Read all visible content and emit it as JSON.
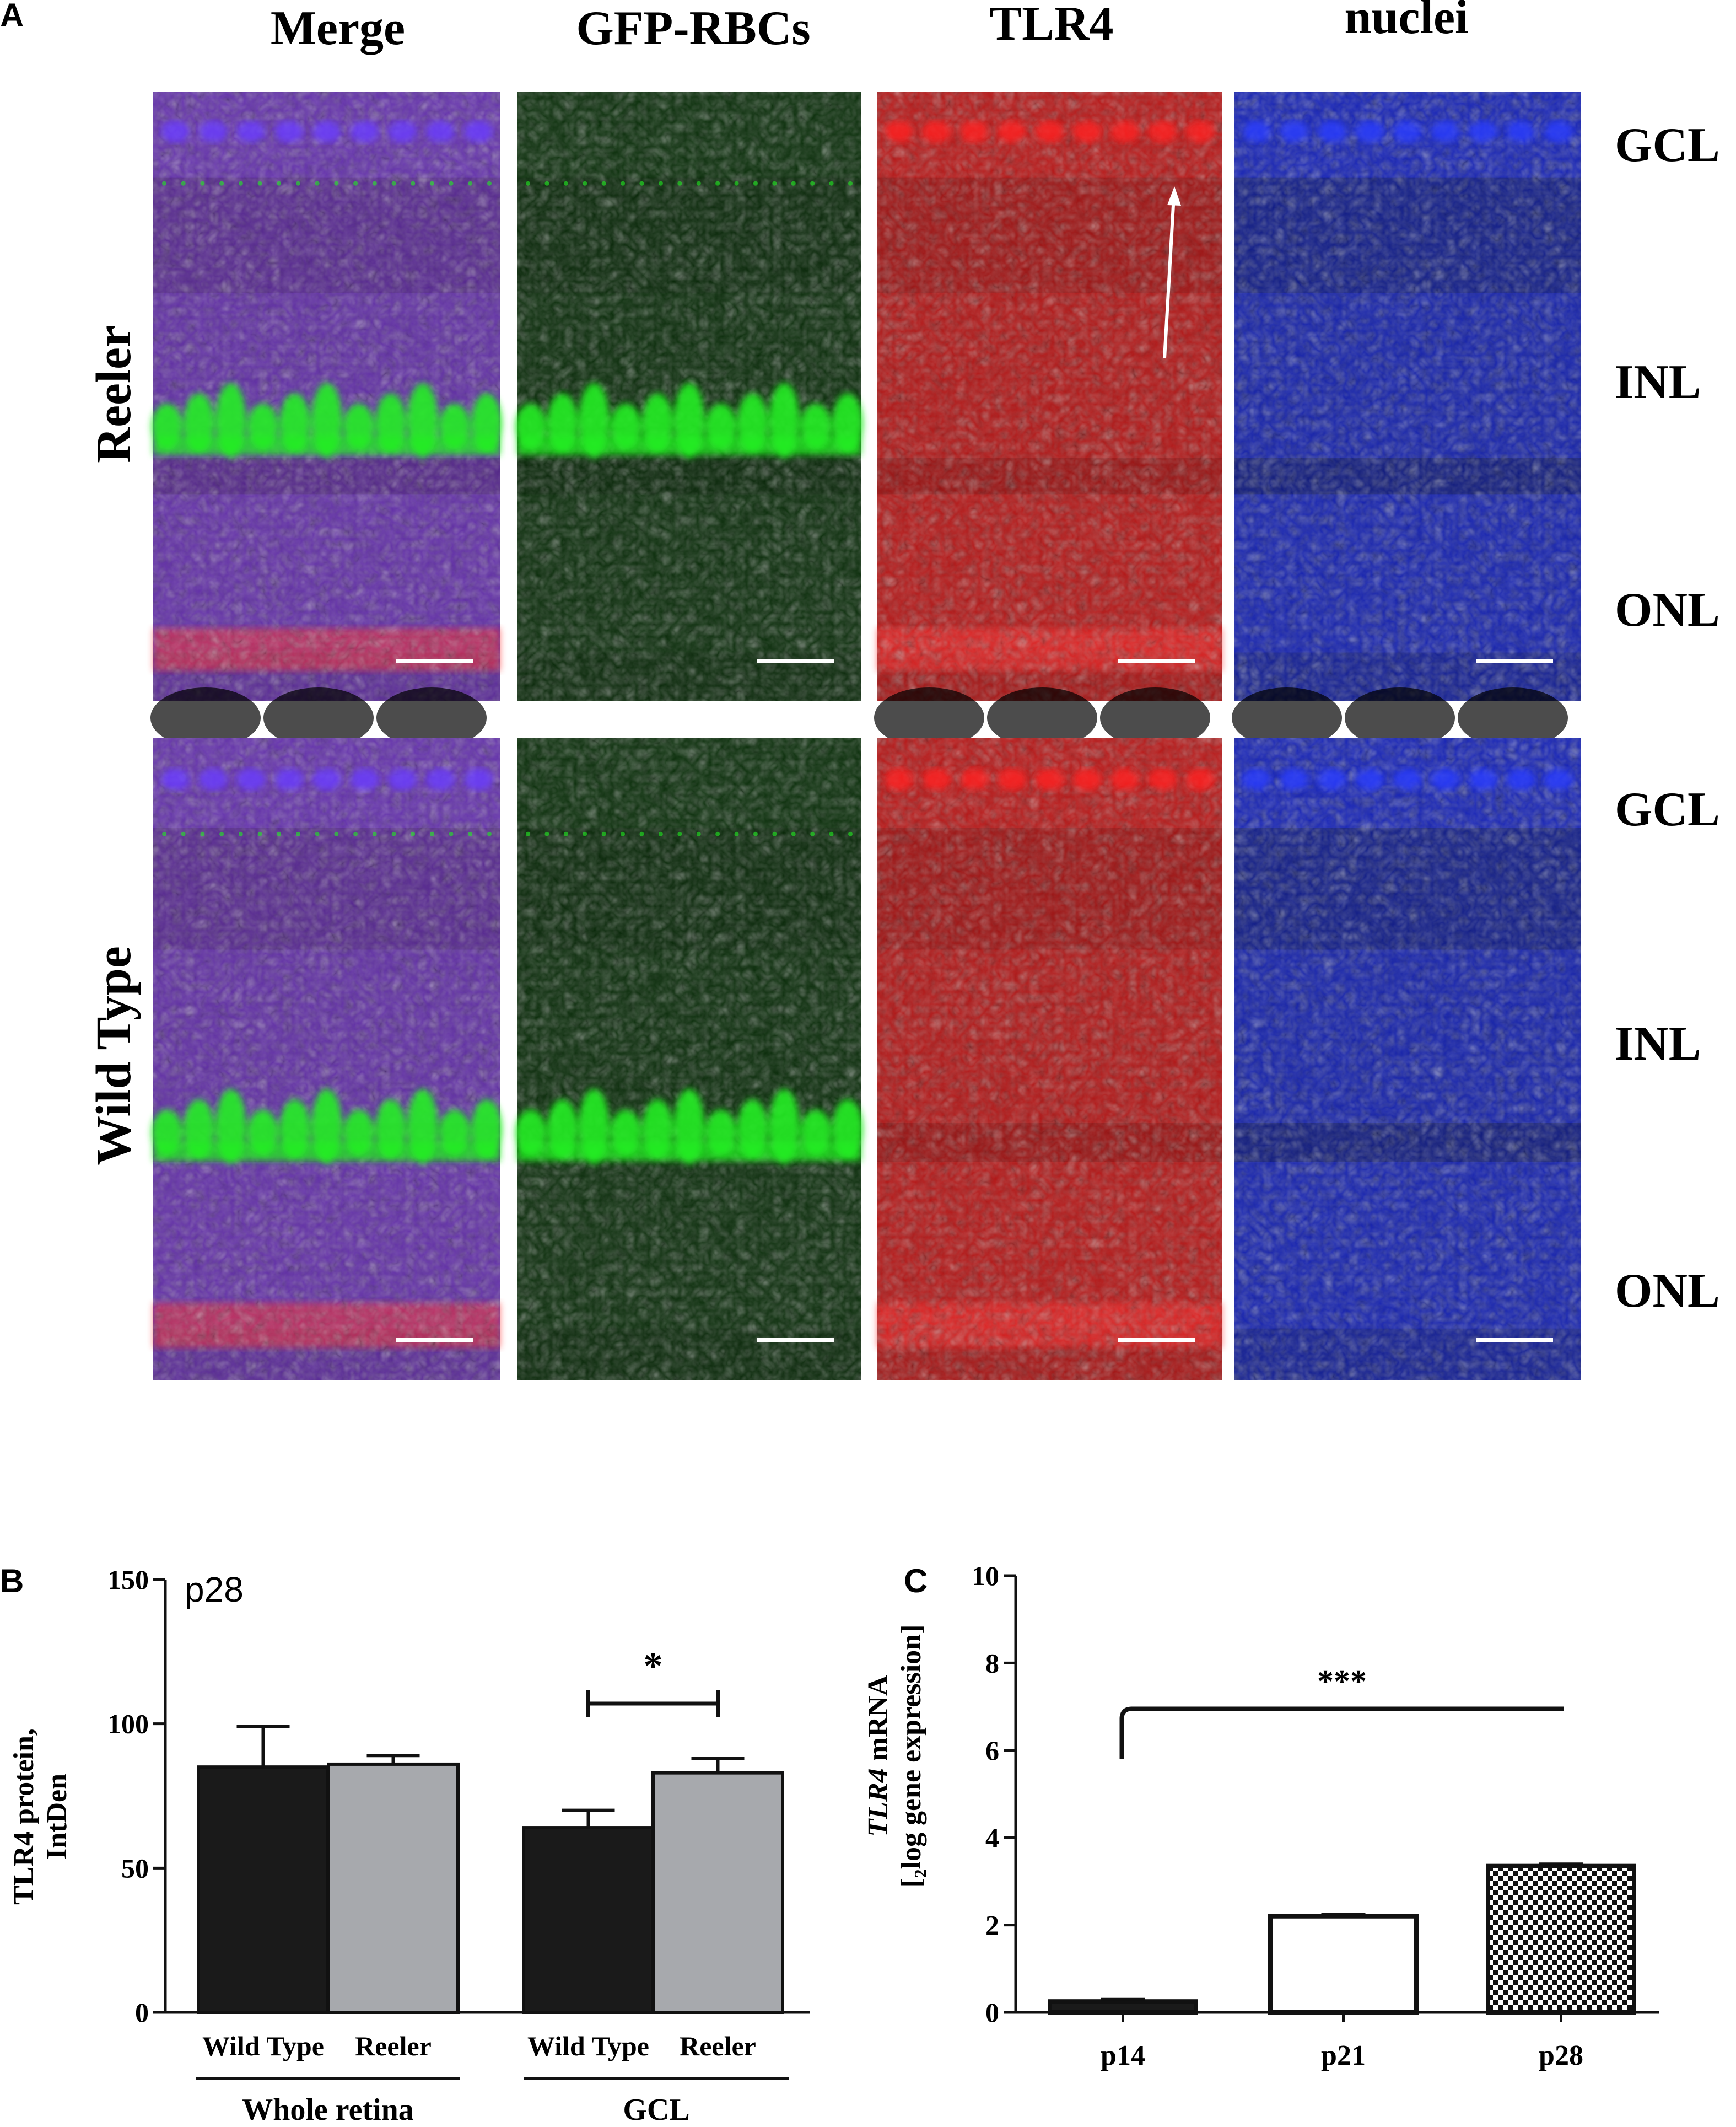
{
  "panel_a": {
    "letter": "A",
    "column_headers": [
      "Merge",
      "GFP-RBCs",
      "TLR4",
      "nuclei"
    ],
    "row_labels": [
      "Reeler",
      "Wild Type"
    ],
    "layer_labels": [
      "GCL",
      "INL",
      "ONL"
    ],
    "channel_colors": {
      "merge": "#5a2a8c",
      "gfp": "#22ee22",
      "tlr4": "#d81818",
      "nuclei": "#1a2cf0"
    }
  },
  "chart_data": [
    {
      "panel": "B",
      "type": "bar",
      "annotation": "p28",
      "ylabel": [
        "TLR4 protein,",
        "IntDen"
      ],
      "ylim": [
        0,
        150
      ],
      "yticks": [
        0,
        50,
        100,
        150
      ],
      "bars": [
        {
          "group": "Whole retina",
          "label": "Wild Type",
          "value": 85,
          "error": 14,
          "color": "#1a1a1a"
        },
        {
          "group": "Whole retina",
          "label": "Reeler",
          "value": 86,
          "error": 3,
          "color": "#a7a9ad"
        },
        {
          "group": "GCL",
          "label": "Wild Type",
          "value": 64,
          "error": 6,
          "color": "#1a1a1a"
        },
        {
          "group": "GCL",
          "label": "Reeler",
          "value": 83,
          "error": 5,
          "color": "#a7a9ad"
        }
      ],
      "groups": [
        "Whole retina",
        "GCL"
      ],
      "significance": {
        "label": "*",
        "from": 2,
        "to": 3
      }
    },
    {
      "panel": "C",
      "type": "bar",
      "ylabel_italic": "TLR4",
      "ylabel_rest": " mRNA",
      "ylabel_line2": "[₂log gene expression]",
      "ylim": [
        0,
        10
      ],
      "yticks": [
        0,
        2,
        4,
        6,
        8,
        10
      ],
      "categories": [
        "p14",
        "p21",
        "p28"
      ],
      "values": [
        0.25,
        2.2,
        3.35
      ],
      "errors": [
        0.05,
        0.05,
        0.05
      ],
      "fills": [
        "solid",
        "white",
        "checker"
      ],
      "significance": {
        "label": "***",
        "from": 0,
        "to": 2
      }
    }
  ]
}
